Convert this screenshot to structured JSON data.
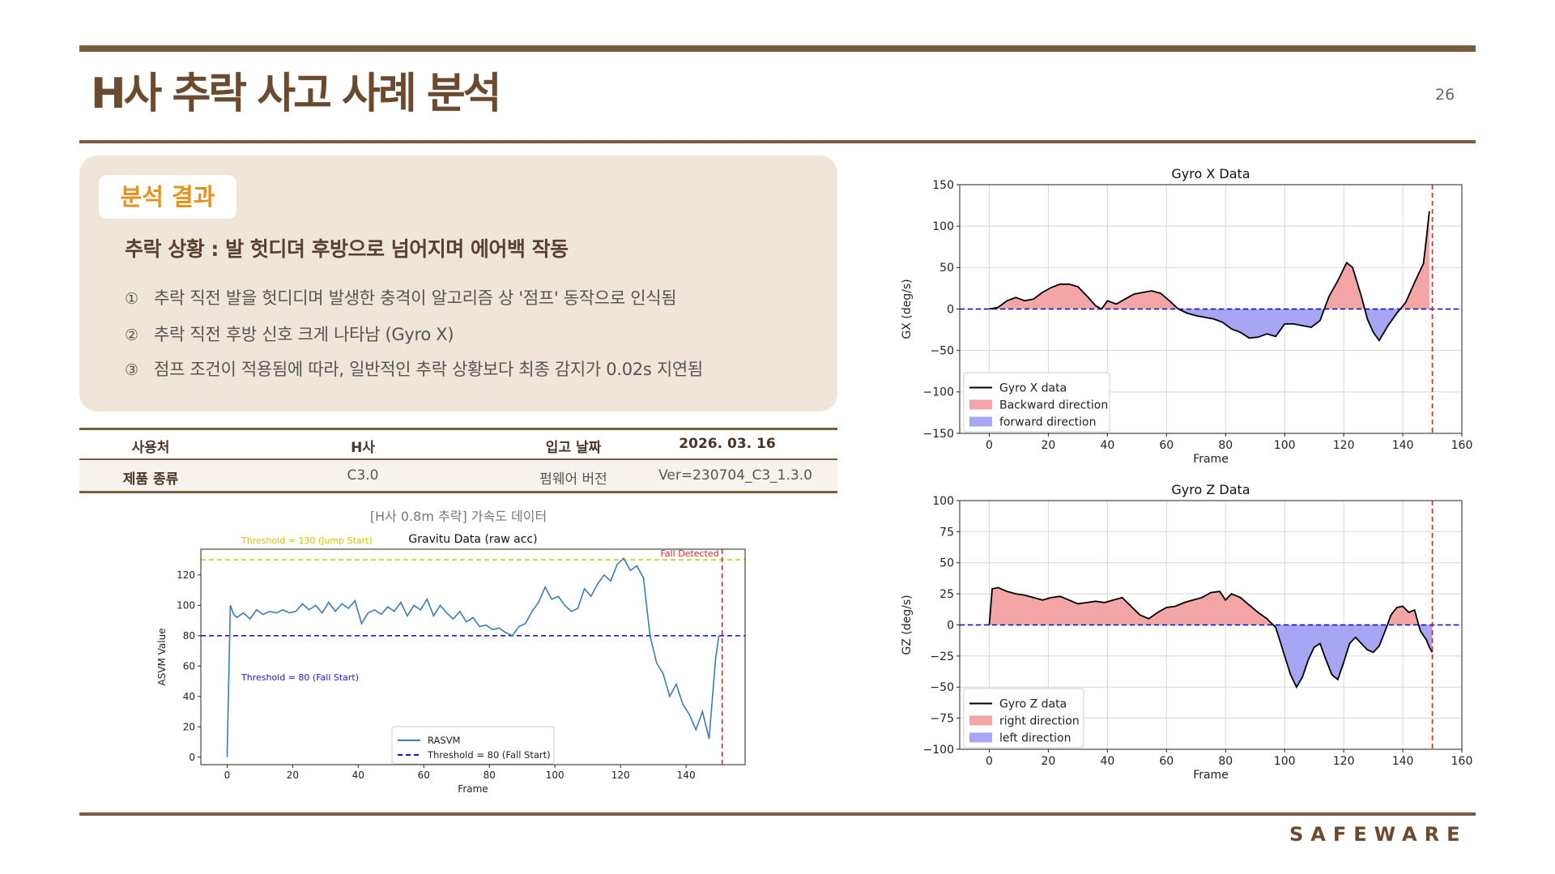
{
  "page": {
    "title": "H사 추락 사고 사례 분석",
    "page_number": "26",
    "brand": "SAFEWARE"
  },
  "colors": {
    "accent": "#7a5c3e",
    "tag": "#e8911a",
    "panel": "#efe6d9"
  },
  "analysis": {
    "tag": "분석 결과",
    "heading": "추락 상황 : 발 헛디뎌 후방으로 넘어지며 에어백 작동",
    "bullets": [
      {
        "num": "①",
        "text": "추락 직전 발을 헛디디며 발생한 충격이 알고리즘 상 '점프' 동작으로 인식됨"
      },
      {
        "num": "②",
        "text": "추락 직전 후방 신호 크게 나타남 (Gyro X)"
      },
      {
        "num": "③",
        "text": "점프 조건이 적용됨에 따라, 일반적인 추락 상황보다 최종 감지가 0.02s  지연됨"
      }
    ]
  },
  "info_table": {
    "rows": [
      [
        "사용처",
        "H사",
        "입고 날짜",
        "2026. 03. 16"
      ],
      [
        "제품 종류",
        "C3.0",
        "펌웨어 버전",
        "Ver=230704_C3_1.3.0"
      ]
    ]
  },
  "caption": "[H사 0.8m 추락] 가속도 데이터",
  "chart_data": [
    {
      "type": "line",
      "title": "Gravitu Data (raw acc)",
      "xlabel": "Frame",
      "ylabel": "ASVM Value",
      "xlim": [
        -8,
        158
      ],
      "ylim": [
        -5,
        137
      ],
      "xticks": [
        0,
        20,
        40,
        60,
        80,
        100,
        120,
        140
      ],
      "yticks": [
        0,
        20,
        40,
        60,
        80,
        100,
        120
      ],
      "grid": false,
      "legend_position": "bottom-center",
      "series": [
        {
          "name": "RASVM",
          "color": "#3a7db5",
          "x": [
            0,
            1,
            2,
            3,
            5,
            7,
            9,
            11,
            13,
            15,
            17,
            19,
            21,
            23,
            25,
            27,
            29,
            31,
            33,
            35,
            37,
            39,
            41,
            43,
            45,
            47,
            49,
            51,
            53,
            55,
            57,
            59,
            61,
            63,
            65,
            67,
            69,
            71,
            73,
            75,
            77,
            79,
            81,
            83,
            85,
            87,
            89,
            91,
            93,
            95,
            97,
            99,
            101,
            103,
            105,
            107,
            109,
            111,
            113,
            115,
            117,
            119,
            121,
            123,
            125,
            127,
            129,
            131,
            133,
            135,
            137,
            139,
            141,
            143,
            145,
            147,
            149,
            150
          ],
          "y": [
            0,
            100,
            94,
            92,
            95,
            91,
            97,
            94,
            96,
            95,
            97,
            95,
            96,
            101,
            97,
            100,
            95,
            102,
            96,
            101,
            98,
            103,
            88,
            95,
            97,
            94,
            99,
            96,
            102,
            93,
            100,
            97,
            104,
            93,
            100,
            95,
            91,
            96,
            89,
            92,
            86,
            87,
            84,
            85,
            82,
            80,
            86,
            88,
            96,
            102,
            112,
            104,
            106,
            100,
            96,
            98,
            111,
            106,
            114,
            120,
            116,
            127,
            131,
            123,
            126,
            118,
            80,
            62,
            55,
            40,
            48,
            35,
            28,
            18,
            30,
            12,
            65,
            80
          ]
        }
      ],
      "reference_lines": [
        {
          "axis": "y",
          "value": 130,
          "label": "Threshold = 130 (Jump Start)",
          "color": "#c8c800"
        },
        {
          "axis": "y",
          "value": 80,
          "label": "Threshold = 80 (Fall Start)",
          "color": "#1a1acc"
        },
        {
          "axis": "x",
          "value": 151,
          "label": "Fall Detected",
          "color": "#d62728"
        }
      ],
      "legend": [
        "RASVM",
        "Threshold = 80 (Fall Start)"
      ]
    },
    {
      "type": "area",
      "title": "Gyro X Data",
      "xlabel": "Frame",
      "ylabel": "GX (deg/s)",
      "xlim": [
        -10,
        160
      ],
      "ylim": [
        -150,
        150
      ],
      "xticks": [
        0,
        20,
        40,
        60,
        80,
        100,
        120,
        140,
        160
      ],
      "yticks": [
        -150,
        -100,
        -50,
        0,
        50,
        100,
        150
      ],
      "grid": true,
      "legend_position": "lower-left",
      "series": [
        {
          "name": "Gyro X data",
          "color": "#000000",
          "x": [
            0,
            3,
            6,
            9,
            12,
            15,
            18,
            21,
            24,
            27,
            30,
            33,
            36,
            38,
            40,
            43,
            46,
            49,
            52,
            55,
            58,
            61,
            64,
            67,
            70,
            73,
            76,
            79,
            82,
            85,
            88,
            91,
            94,
            97,
            100,
            103,
            106,
            109,
            112,
            115,
            118,
            121,
            123,
            126,
            128,
            130,
            132,
            135,
            138,
            141,
            144,
            147,
            148,
            149
          ],
          "y": [
            0,
            2,
            10,
            14,
            10,
            12,
            20,
            26,
            30,
            30,
            27,
            16,
            4,
            0,
            10,
            6,
            12,
            18,
            20,
            22,
            19,
            10,
            0,
            -5,
            -8,
            -10,
            -12,
            -16,
            -24,
            -28,
            -35,
            -34,
            -30,
            -33,
            -18,
            -18,
            -20,
            -22,
            -14,
            15,
            34,
            56,
            50,
            15,
            -12,
            -28,
            -38,
            -20,
            -5,
            8,
            32,
            55,
            85,
            118
          ]
        }
      ],
      "fills": [
        {
          "name": "Backward direction",
          "color": "#f4a6a6"
        },
        {
          "name": "forward direction",
          "color": "#a6a6f4"
        }
      ],
      "reference_lines": [
        {
          "axis": "y",
          "value": 0,
          "color": "#0000cc"
        },
        {
          "axis": "x",
          "value": 150,
          "color": "#d62728"
        }
      ],
      "legend": [
        "Gyro X data",
        "Backward direction",
        "forward direction"
      ]
    },
    {
      "type": "area",
      "title": "Gyro Z Data",
      "xlabel": "Frame",
      "ylabel": "GZ (deg/s)",
      "xlim": [
        -10,
        160
      ],
      "ylim": [
        -100,
        100
      ],
      "xticks": [
        0,
        20,
        40,
        60,
        80,
        100,
        120,
        140,
        160
      ],
      "yticks": [
        -100,
        -75,
        -50,
        -25,
        0,
        25,
        50,
        75,
        100
      ],
      "grid": true,
      "legend_position": "lower-left",
      "series": [
        {
          "name": "Gyro Z data",
          "color": "#000000",
          "x": [
            0,
            1,
            3,
            6,
            9,
            12,
            15,
            18,
            21,
            24,
            27,
            30,
            33,
            36,
            39,
            42,
            45,
            48,
            51,
            54,
            57,
            60,
            63,
            66,
            69,
            72,
            75,
            78,
            80,
            82,
            85,
            88,
            91,
            94,
            97,
            100,
            102,
            104,
            106,
            108,
            110,
            112,
            114,
            116,
            118,
            120,
            122,
            124,
            126,
            128,
            130,
            132,
            134,
            136,
            138,
            140,
            142,
            144,
            146,
            148,
            149,
            150
          ],
          "y": [
            0,
            29,
            30,
            27,
            25,
            24,
            22,
            20,
            22,
            23,
            20,
            17,
            18,
            19,
            18,
            20,
            22,
            15,
            8,
            5,
            10,
            14,
            15,
            18,
            20,
            22,
            26,
            27,
            20,
            25,
            22,
            16,
            10,
            5,
            -2,
            -25,
            -40,
            -50,
            -42,
            -28,
            -18,
            -15,
            -28,
            -40,
            -44,
            -30,
            -15,
            -10,
            -15,
            -20,
            -22,
            -17,
            -5,
            8,
            14,
            15,
            10,
            12,
            -5,
            -12,
            -18,
            -22
          ]
        }
      ],
      "fills": [
        {
          "name": "right direction",
          "color": "#f4a6a6"
        },
        {
          "name": "left direction",
          "color": "#a6a6f4"
        }
      ],
      "reference_lines": [
        {
          "axis": "y",
          "value": 0,
          "color": "#0000cc"
        },
        {
          "axis": "x",
          "value": 150,
          "color": "#d62728"
        }
      ],
      "legend": [
        "Gyro Z data",
        "right direction",
        "left direction"
      ]
    }
  ]
}
